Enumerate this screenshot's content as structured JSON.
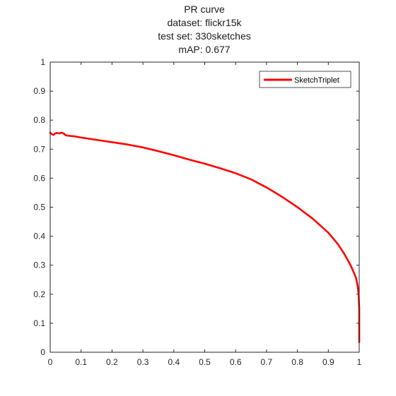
{
  "chart_data": {
    "type": "line",
    "title_lines": [
      "PR curve",
      "dataset: flickr15k",
      "test set: 330sketches",
      "mAP: 0.677"
    ],
    "xlabel": "",
    "ylabel": "",
    "xlim": [
      0,
      1
    ],
    "ylim": [
      0,
      1
    ],
    "xticks": [
      0,
      0.1,
      0.2,
      0.3,
      0.4,
      0.5,
      0.6,
      0.7,
      0.8,
      0.9,
      1
    ],
    "xtick_labels": [
      "0",
      "0.1",
      "0.2",
      "0.3",
      "0.4",
      "0.5",
      "0.6",
      "0.7",
      "0.8",
      "0.9",
      "1"
    ],
    "yticks": [
      0,
      0.1,
      0.2,
      0.3,
      0.4,
      0.5,
      0.6,
      0.7,
      0.8,
      0.9,
      1
    ],
    "ytick_labels": [
      "0",
      "0.1",
      "0.2",
      "0.3",
      "0.4",
      "0.5",
      "0.6",
      "0.7",
      "0.8",
      "0.9",
      "1"
    ],
    "grid": false,
    "legend_position": "top-right",
    "series": [
      {
        "name": "SketchTriplet",
        "color": "#ff0000",
        "x": [
          0.0,
          0.005,
          0.01,
          0.015,
          0.02,
          0.03,
          0.035,
          0.04,
          0.045,
          0.05,
          0.06,
          0.08,
          0.1,
          0.15,
          0.2,
          0.25,
          0.3,
          0.35,
          0.4,
          0.45,
          0.5,
          0.55,
          0.6,
          0.65,
          0.7,
          0.75,
          0.8,
          0.85,
          0.9,
          0.93,
          0.95,
          0.97,
          0.98,
          0.99,
          0.995,
          0.998,
          1.0,
          1.0,
          1.0
        ],
        "y": [
          0.757,
          0.752,
          0.749,
          0.753,
          0.756,
          0.754,
          0.757,
          0.756,
          0.753,
          0.748,
          0.746,
          0.744,
          0.74,
          0.732,
          0.724,
          0.716,
          0.706,
          0.693,
          0.679,
          0.664,
          0.65,
          0.634,
          0.617,
          0.596,
          0.568,
          0.536,
          0.5,
          0.46,
          0.412,
          0.374,
          0.342,
          0.304,
          0.281,
          0.255,
          0.228,
          0.2,
          0.15,
          0.1,
          0.035
        ]
      }
    ]
  }
}
